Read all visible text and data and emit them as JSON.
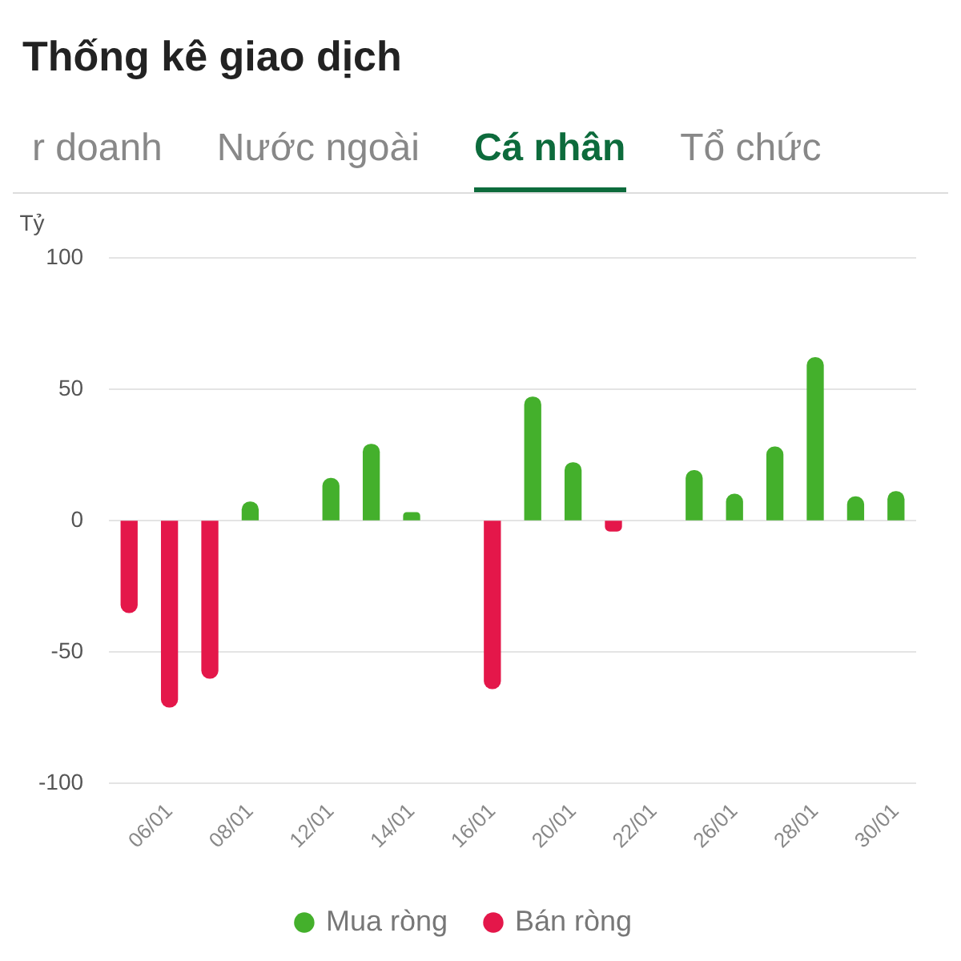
{
  "chart_data": {
    "type": "bar",
    "title": "Thống kê giao dịch",
    "annotations": [
      "r doanh",
      "Nước ngoài",
      "Cá nhân",
      "Tổ chức"
    ],
    "ylabel": "Tỷ",
    "categories": [
      null,
      "06/01",
      null,
      "08/01",
      null,
      "12/01",
      null,
      "14/01",
      null,
      "16/01",
      null,
      "20/01",
      null,
      "22/01",
      null,
      "26/01",
      null,
      "28/01",
      null,
      "30/01"
    ],
    "stacked": true,
    "series": [
      {
        "name": "Mua ròng",
        "color": "#44b02c",
        "values": [
          null,
          null,
          null,
          7,
          null,
          16,
          29,
          3,
          null,
          null,
          47,
          22,
          null,
          null,
          19,
          10,
          28,
          62,
          9,
          11
        ]
      },
      {
        "name": "Bán ròng",
        "color": "#e4174a",
        "values": [
          -35,
          -71,
          -60,
          null,
          null,
          null,
          null,
          null,
          null,
          -64,
          null,
          null,
          -4,
          null,
          null,
          null,
          null,
          null,
          null,
          null
        ]
      }
    ],
    "ylim": [
      -100,
      100
    ],
    "yticks": [
      -100,
      -50,
      0,
      50,
      100
    ],
    "grid": "y",
    "legend": "bottom"
  }
}
